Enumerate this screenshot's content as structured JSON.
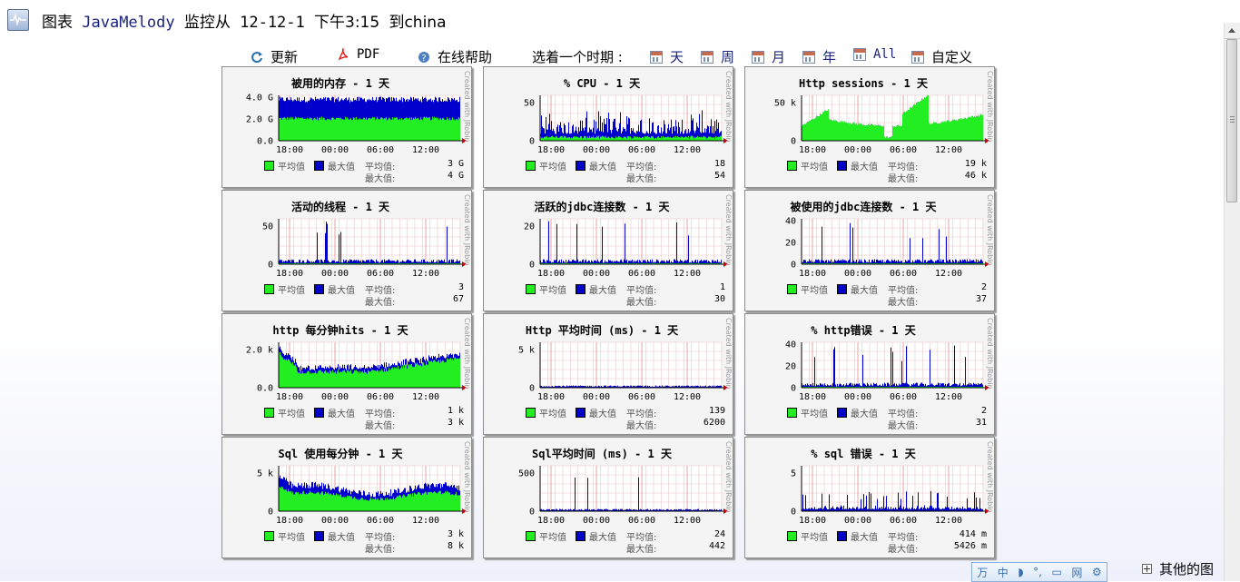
{
  "header": {
    "label": "图表",
    "app": "JavaMelody",
    "monitor": "监控从",
    "date": "12-12-1",
    "time_label": "下午3:15",
    "to": "到china"
  },
  "toolbar": {
    "refresh": "更新",
    "pdf": "PDF",
    "help": "在线帮助",
    "choose_period": "选着一个时期 :",
    "day": "天",
    "week": "周",
    "month": "月",
    "year": "年",
    "all": "All",
    "custom": "自定义"
  },
  "legend": {
    "avg": "平均值",
    "max": "最大值",
    "avg_label": "平均值:",
    "max_label": "最大值:"
  },
  "credit": "Created with JRobin",
  "colors": {
    "avg": "#22ee22",
    "max": "#0000cc",
    "grid_minor": "#e8c8c8",
    "grid_major": "#e09090"
  },
  "x_ticks": [
    "18:00",
    "00:00",
    "06:00",
    "12:00"
  ],
  "charts": [
    {
      "title": "被用的内存 - 1 天",
      "yticks": [
        "4.0 G",
        "2.0 G",
        "0.0"
      ],
      "ymax": 4.8,
      "avg": "3 G",
      "max": "4 G",
      "shape": "memory"
    },
    {
      "title": "% CPU - 1 天",
      "yticks": [
        "50",
        "0"
      ],
      "ymax": 100,
      "avg": "18",
      "max": "54",
      "shape": "cpu"
    },
    {
      "title": "Http sessions - 1 天",
      "yticks": [
        "50 k",
        "0"
      ],
      "ymax": 100,
      "avg": "19 k",
      "max": "46 k",
      "shape": "sessions"
    },
    {
      "title": "活动的线程 - 1 天",
      "yticks": [
        "50",
        "0"
      ],
      "ymax": 100,
      "avg": "3",
      "max": "67",
      "shape": "spiky"
    },
    {
      "title": "活跃的jdbc连接数 - 1 天",
      "yticks": [
        "20",
        "0"
      ],
      "ymax": 100,
      "avg": "1",
      "max": "30",
      "shape": "spiky"
    },
    {
      "title": "被使用的jdbc连接数 - 1 天",
      "yticks": [
        "40",
        "20",
        "0"
      ],
      "ymax": 100,
      "avg": "2",
      "max": "37",
      "shape": "spiky"
    },
    {
      "title": "http 每分钟hits - 1 天",
      "yticks": [
        "2.0 k",
        "0.0"
      ],
      "ymax": 100,
      "avg": "1 k",
      "max": "3 k",
      "shape": "hits"
    },
    {
      "title": "Http 平均时间 (ms) - 1 天",
      "yticks": [
        "5 k",
        "0"
      ],
      "ymax": 100,
      "avg": "139",
      "max": "6200",
      "shape": "flat"
    },
    {
      "title": "% http错误 - 1 天",
      "yticks": [
        "40",
        "20",
        "0"
      ],
      "ymax": 100,
      "avg": "2",
      "max": "31",
      "shape": "spiky"
    },
    {
      "title": "Sql 使用每分钟 - 1 天",
      "yticks": [
        "5 k",
        "0"
      ],
      "ymax": 100,
      "avg": "3 k",
      "max": "8 k",
      "shape": "sqlhits"
    },
    {
      "title": "Sql平均时间 (ms) - 1 天",
      "yticks": [
        "500",
        "0"
      ],
      "ymax": 100,
      "avg": "24",
      "max": "442",
      "shape": "flat"
    },
    {
      "title": "% sql 错误 - 1 天",
      "yticks": [
        "5",
        "0"
      ],
      "ymax": 100,
      "avg": "414 m",
      "max": "5426 m",
      "shape": "sqlerr"
    }
  ],
  "footer": {
    "other_charts": "其他的图"
  },
  "ime": {
    "items": [
      "万",
      "中",
      "◗",
      "°,",
      "▭",
      "网",
      "⚙"
    ]
  }
}
